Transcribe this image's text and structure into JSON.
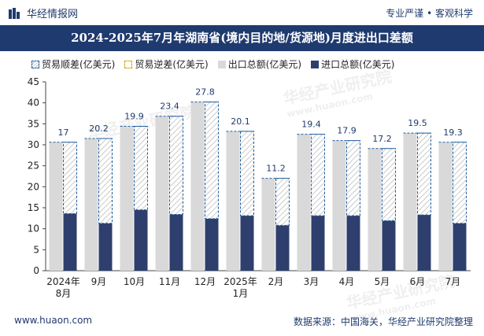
{
  "header": {
    "brand": "华经情报网",
    "tagline": "专业严谨 • 客观科学"
  },
  "title": "2024-2025年7月年湖南省(境内目的地/货源地)月度进出口差额",
  "legend": [
    {
      "key": "surplus",
      "label": "贸易顺差(亿美元)"
    },
    {
      "key": "deficit",
      "label": "贸易逆差(亿美元)"
    },
    {
      "key": "export",
      "label": "出口总额(亿美元)"
    },
    {
      "key": "import",
      "label": "进口总额(亿美元)"
    }
  ],
  "watermark": {
    "text": "华经产业研究院",
    "url": "www.huaon.com"
  },
  "footer": {
    "left": "www.huaon.com",
    "right": "数据来源：中国海关，华经产业研究院整理"
  },
  "colors": {
    "navy": "#1f3a6e",
    "export": "#d9d9d9",
    "import": "#2e3f6d",
    "surplus_border": "#1f5e9e"
  },
  "chart_data": {
    "type": "bar",
    "categories": [
      [
        "2024年",
        "8月"
      ],
      [
        "9月"
      ],
      [
        "10月"
      ],
      [
        "11月"
      ],
      [
        "12月"
      ],
      [
        "2025年",
        "1月"
      ],
      [
        "2月"
      ],
      [
        "3月"
      ],
      [
        "4月"
      ],
      [
        "5月"
      ],
      [
        "6月"
      ],
      [
        "7月"
      ]
    ],
    "series": [
      {
        "name": "出口总额(亿美元)",
        "values": [
          30.6,
          31.5,
          34.4,
          36.8,
          40.2,
          33.2,
          22.0,
          32.5,
          31.0,
          29.1,
          32.8,
          30.6
        ]
      },
      {
        "name": "进口总额(亿美元)",
        "values": [
          13.6,
          11.3,
          14.5,
          13.4,
          12.4,
          13.1,
          10.8,
          13.1,
          13.1,
          11.9,
          13.3,
          11.3
        ]
      },
      {
        "name": "贸易顺差(亿美元)",
        "values": [
          17,
          20.2,
          19.9,
          23.4,
          27.8,
          20.1,
          11.2,
          19.4,
          17.9,
          17.2,
          19.5,
          19.3
        ]
      }
    ],
    "ylim": [
      0,
      45
    ],
    "yticks": [
      0,
      5,
      10,
      15,
      20,
      25,
      30,
      35,
      40,
      45
    ],
    "grid": false,
    "legend_position": "top"
  }
}
